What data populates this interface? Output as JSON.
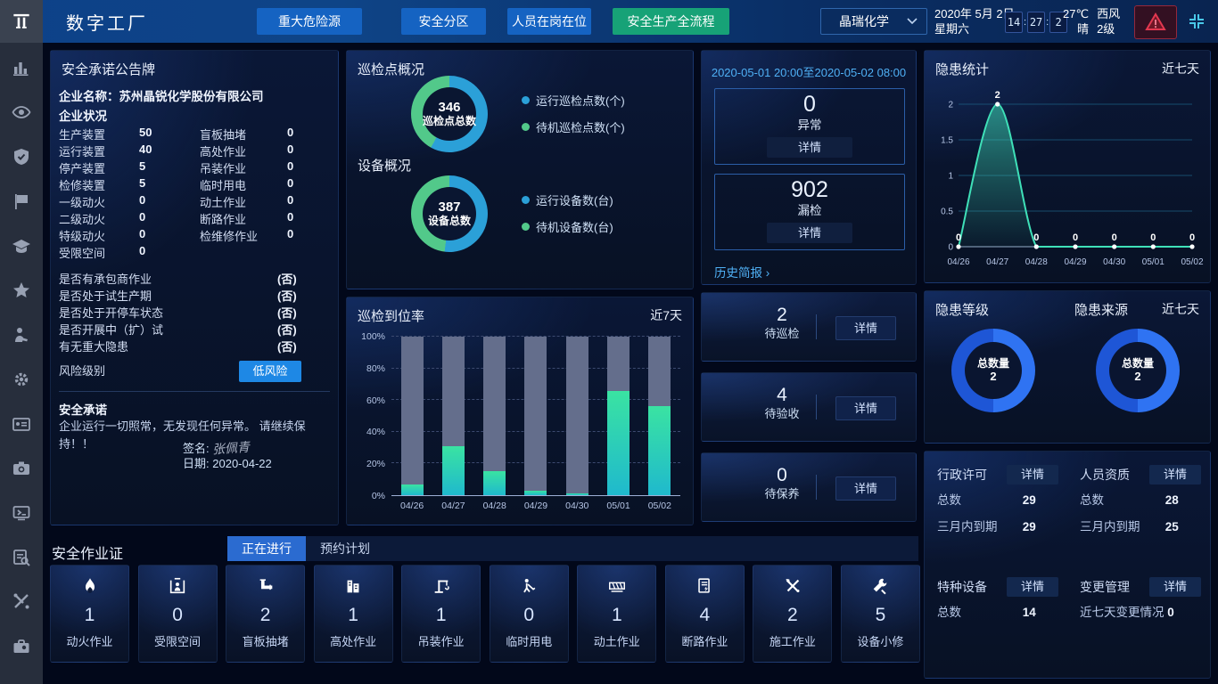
{
  "topbar": {
    "title": "数字工厂",
    "nav": [
      {
        "label": "重大危险源",
        "active": false
      },
      {
        "label": "安全分区",
        "active": false
      },
      {
        "label": "人员在岗在位",
        "active": false
      },
      {
        "label": "安全生产全流程",
        "active": true
      }
    ],
    "company_select": {
      "value": "晶瑞化学"
    },
    "date_line1": "2020年 5月 2日",
    "date_line2": "星期六",
    "clock": {
      "h": "14",
      "m": "27",
      "s": "2"
    },
    "weather": {
      "temp": "27℃",
      "cond": "晴",
      "wind": "西风",
      "level": "2级"
    }
  },
  "sidebar": {
    "items": [
      "bar-chart",
      "eye",
      "shield",
      "flag",
      "graduation-cap",
      "star",
      "worker",
      "gear",
      "id-card",
      "camera",
      "monitor-book",
      "doc-search",
      "tools",
      "toolbag"
    ]
  },
  "commitment": {
    "title": "安全承诺公告牌",
    "company_label": "企业名称：",
    "company_name": "苏州晶锐化学股份有限公司",
    "status_title": "企业状况",
    "stats": [
      [
        "生产装置",
        "50"
      ],
      [
        "盲板抽堵",
        "0"
      ],
      [
        "运行装置",
        "40"
      ],
      [
        "高处作业",
        "0"
      ],
      [
        "停产装置",
        "5"
      ],
      [
        "吊装作业",
        "0"
      ],
      [
        "检修装置",
        "5"
      ],
      [
        "临时用电",
        "0"
      ],
      [
        "一级动火",
        "0"
      ],
      [
        "动土作业",
        "0"
      ],
      [
        "二级动火",
        "0"
      ],
      [
        "断路作业",
        "0"
      ],
      [
        "特级动火",
        "0"
      ],
      [
        "检维修作业",
        "0"
      ],
      [
        "受限空间",
        "0"
      ]
    ],
    "questions": [
      [
        "是否有承包商作业",
        "(否)"
      ],
      [
        "是否处于试生产期",
        "(否)"
      ],
      [
        "是否处于开停车状态",
        "(否)"
      ],
      [
        "是否开展中（扩）试",
        "(否)"
      ],
      [
        "有无重大隐患",
        "(否)"
      ]
    ],
    "risk_label": "风险级别",
    "risk_value": "低风险",
    "promise_title": "安全承诺",
    "promise_text": "企业运行一切照常，无发现任何异常。 请继续保持！！",
    "sign_label": "签名:",
    "sign_name": "张佩青",
    "date_label": "日期:",
    "sign_date": "2020-04-22"
  },
  "inspection_overview": {
    "title1": "巡检点概况",
    "title2": "设备概况",
    "donut1": {
      "value": "346",
      "label": "巡检点总数"
    },
    "donut2": {
      "value": "387",
      "label": "设备总数"
    }
  },
  "patrol_rate": {
    "title": "巡检到位率",
    "range": "近7天"
  },
  "shift_report": {
    "period": "2020-05-01 20:00至2020-05-02 08:00",
    "boxes": [
      {
        "value": "0",
        "label": "异常",
        "btn": "详情"
      },
      {
        "value": "902",
        "label": "漏检",
        "btn": "详情"
      }
    ],
    "history_link": "历史简报 ›"
  },
  "todo_cards": [
    {
      "value": "2",
      "label": "待巡检",
      "btn": "详情"
    },
    {
      "value": "4",
      "label": "待验收",
      "btn": "详情"
    },
    {
      "value": "0",
      "label": "待保养",
      "btn": "详情"
    }
  ],
  "danger_stats": {
    "title": "隐患统计",
    "range": "近七天"
  },
  "danger_donuts": {
    "title1": "隐患等级",
    "title2": "隐患来源",
    "range": "近七天",
    "center_label": "总数量",
    "center_value": "2"
  },
  "licenses": {
    "blocks": [
      {
        "title": "行政许可",
        "btn": "详情",
        "rows": [
          [
            "总数",
            "29"
          ],
          [
            "三月内到期",
            "29"
          ]
        ]
      },
      {
        "title": "人员资质",
        "btn": "详情",
        "rows": [
          [
            "总数",
            "28"
          ],
          [
            "三月内到期",
            "25"
          ]
        ]
      },
      {
        "title": "特种设备",
        "btn": "详情",
        "rows": [
          [
            "总数",
            "14"
          ]
        ]
      },
      {
        "title": "变更管理",
        "btn": "详情",
        "rows": [
          [
            "近七天变更情况",
            "0"
          ]
        ]
      }
    ]
  },
  "permits": {
    "title": "安全作业证",
    "tabs": [
      {
        "label": "正在进行",
        "active": true
      },
      {
        "label": "预约计划",
        "active": false
      }
    ],
    "cards": [
      {
        "icon": "flame",
        "value": "1",
        "label": "动火作业"
      },
      {
        "icon": "confined",
        "value": "0",
        "label": "受限空间"
      },
      {
        "icon": "pipe",
        "value": "2",
        "label": "盲板抽堵"
      },
      {
        "icon": "building",
        "value": "1",
        "label": "高处作业"
      },
      {
        "icon": "crane",
        "value": "1",
        "label": "吊装作业"
      },
      {
        "icon": "electric",
        "value": "0",
        "label": "临时用电"
      },
      {
        "icon": "digging",
        "value": "1",
        "label": "动土作业"
      },
      {
        "icon": "roadbreak",
        "value": "4",
        "label": "断路作业"
      },
      {
        "icon": "construction",
        "value": "2",
        "label": "施工作业"
      },
      {
        "icon": "repair",
        "value": "5",
        "label": "设备小修"
      }
    ]
  },
  "colors": {
    "accent_green": "#17a277",
    "accent_blue": "#1563c2",
    "donut_blue": "#2ba0d8",
    "donut_green": "#52c98a",
    "hd_blue_bright": "#2f73f2",
    "hd_blue_dark": "#1e56d6",
    "teal_line": "#3fe0b8",
    "bar_track": "#646e8c",
    "risk_button": "#1e88e5",
    "link": "#4fb0f5"
  },
  "chart_data": [
    {
      "type": "pie",
      "variant": "donut",
      "title": "巡检点总数",
      "center_value": 346,
      "center_label": "巡检点总数",
      "series": [
        {
          "name": "运行巡检点数(个)",
          "pct": 58,
          "color": "#2ba0d8"
        },
        {
          "name": "待机巡检点数(个)",
          "pct": 42,
          "color": "#52c98a"
        }
      ]
    },
    {
      "type": "pie",
      "variant": "donut",
      "title": "设备总数",
      "center_value": 387,
      "center_label": "设备总数",
      "series": [
        {
          "name": "运行设备数(台)",
          "pct": 52,
          "color": "#2ba0d8"
        },
        {
          "name": "待机设备数(台)",
          "pct": 48,
          "color": "#52c98a"
        }
      ]
    },
    {
      "type": "bar",
      "title": "巡检到位率",
      "range_label": "近7天",
      "categories": [
        "04/26",
        "04/27",
        "04/28",
        "04/29",
        "04/30",
        "05/01",
        "05/02"
      ],
      "values": [
        7,
        31,
        15,
        3,
        1,
        66,
        56
      ],
      "ylim": [
        0,
        100
      ],
      "yticks": [
        0,
        20,
        40,
        60,
        80,
        100
      ],
      "unit": "%",
      "track_color": "#646e8c",
      "fill_top": "#3ae3a2",
      "fill_bottom": "#1fb9cd"
    },
    {
      "type": "area",
      "title": "隐患统计",
      "range_label": "近七天",
      "categories": [
        "04/26",
        "04/27",
        "04/28",
        "04/29",
        "04/30",
        "05/01",
        "05/02"
      ],
      "values": [
        0,
        2,
        0,
        0,
        0,
        0,
        0
      ],
      "ylim": [
        0,
        2
      ],
      "yticks": [
        0,
        0.5,
        1,
        1.5,
        2
      ],
      "line_color": "#3fe0b8"
    },
    {
      "type": "pie",
      "variant": "donut",
      "title": "隐患等级",
      "center_label": "总数量",
      "center_value": 2,
      "series": [
        {
          "name": "slice-right",
          "pct": 50,
          "color": "#2f73f2"
        },
        {
          "name": "slice-left",
          "pct": 50,
          "color": "#1e56d6"
        }
      ]
    },
    {
      "type": "pie",
      "variant": "donut",
      "title": "隐患来源",
      "center_label": "总数量",
      "center_value": 2,
      "series": [
        {
          "name": "slice-right",
          "pct": 50,
          "color": "#2f73f2"
        },
        {
          "name": "slice-left",
          "pct": 50,
          "color": "#1e56d6"
        }
      ]
    }
  ]
}
